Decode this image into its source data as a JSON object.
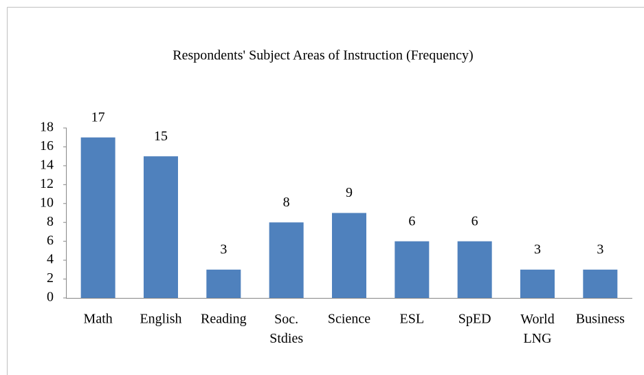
{
  "chart_data": {
    "type": "bar",
    "title": "Respondents' Subject Areas of Instruction (Frequency)",
    "categories": [
      "Math",
      "English",
      "Reading",
      "Soc. Stdies",
      "Science",
      "ESL",
      "SpED",
      "World LNG",
      "Business"
    ],
    "values": [
      17,
      15,
      3,
      8,
      9,
      6,
      6,
      3,
      3
    ],
    "color": "#4f81bd",
    "ylim": [
      0,
      18
    ],
    "yticks": [
      0,
      2,
      4,
      6,
      8,
      10,
      12,
      14,
      16,
      18
    ],
    "grid": false
  }
}
